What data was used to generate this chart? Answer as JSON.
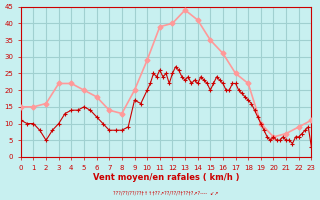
{
  "xlabel": "Vent moyen/en rafales ( km/h )",
  "ylabel": "",
  "bg_color": "#c8f0f0",
  "grid_color": "#a0d0d0",
  "ylim": [
    0,
    45
  ],
  "xlim": [
    0,
    23
  ],
  "yticks": [
    0,
    5,
    10,
    15,
    20,
    25,
    30,
    35,
    40,
    45
  ],
  "xticks": [
    0,
    1,
    2,
    3,
    4,
    5,
    6,
    7,
    8,
    9,
    10,
    11,
    12,
    13,
    14,
    15,
    16,
    17,
    18,
    19,
    20,
    21,
    22,
    23
  ],
  "avg_color": "#cc0000",
  "gust_color": "#ff9999",
  "gust_wind": [
    15,
    15,
    16,
    22,
    22,
    20,
    18,
    14,
    13,
    20,
    29,
    39,
    40,
    44,
    41,
    35,
    31,
    25,
    22,
    10,
    6,
    7,
    9,
    11
  ],
  "avg_x": [
    0,
    0.5,
    1,
    1.5,
    2,
    2.5,
    3,
    3.5,
    4,
    4.5,
    5,
    5.5,
    6,
    6.5,
    7,
    7.5,
    8,
    8.5,
    9,
    9.5,
    10,
    10.25,
    10.5,
    10.75,
    11,
    11.25,
    11.5,
    11.75,
    12,
    12.25,
    12.5,
    12.75,
    13,
    13.25,
    13.5,
    13.75,
    14,
    14.25,
    14.5,
    14.75,
    15,
    15.25,
    15.5,
    15.75,
    16,
    16.25,
    16.5,
    16.75,
    17,
    17.25,
    17.5,
    17.75,
    18,
    18.25,
    18.5,
    18.75,
    19,
    19.25,
    19.5,
    19.75,
    20,
    20.25,
    20.5,
    20.75,
    21,
    21.25,
    21.5,
    21.75,
    22,
    22.25,
    22.5,
    22.75,
    23
  ],
  "avg_y": [
    11,
    10,
    10,
    8,
    5,
    8,
    10,
    13,
    14,
    14,
    15,
    14,
    12,
    10,
    8,
    8,
    8,
    9,
    17,
    16,
    20,
    22,
    25,
    24,
    26,
    24,
    25,
    22,
    25,
    27,
    26,
    24,
    23,
    24,
    22,
    23,
    22,
    24,
    23,
    22,
    20,
    22,
    24,
    23,
    22,
    20,
    20,
    22,
    22,
    20,
    19,
    18,
    17,
    16,
    14,
    12,
    10,
    8,
    6,
    5,
    6,
    5,
    5,
    6,
    5,
    5,
    4,
    6,
    6,
    7,
    8,
    9,
    3
  ]
}
